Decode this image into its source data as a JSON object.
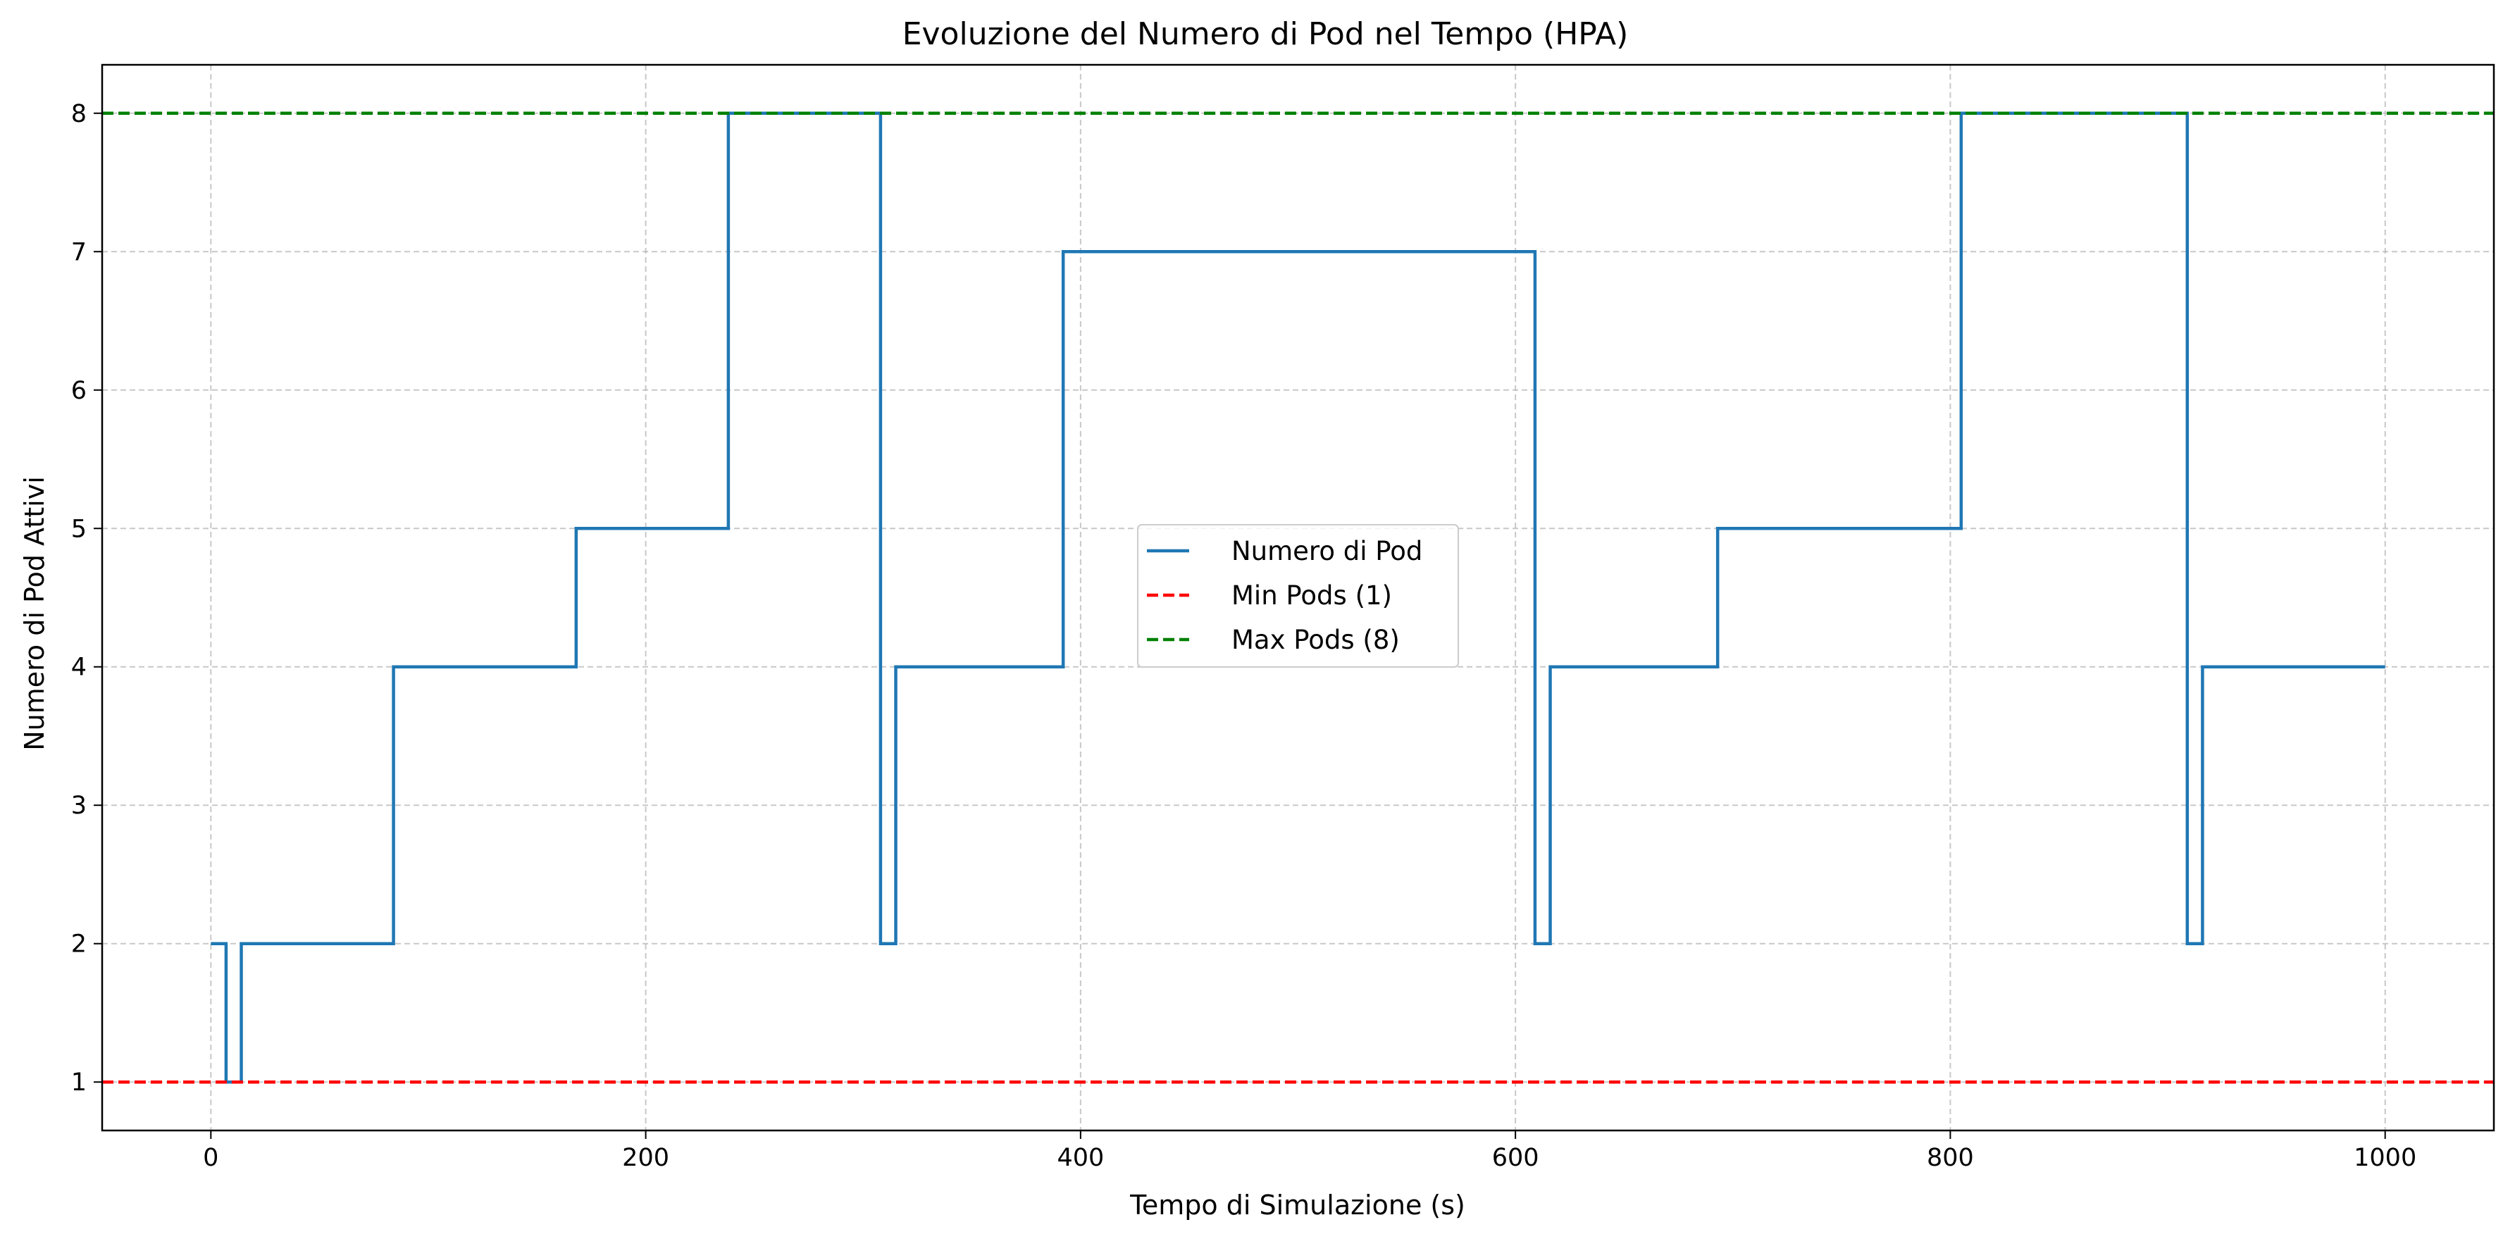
{
  "chart_data": {
    "type": "line",
    "title": "Evoluzione del Numero di Pod nel Tempo (HPA)",
    "xlabel": "Tempo di Simulazione (s)",
    "ylabel": "Numero di Pod Attivi",
    "xlim": [
      -50,
      1050
    ],
    "ylim": [
      0.65,
      8.35
    ],
    "xticks": [
      0,
      200,
      400,
      600,
      800,
      1000
    ],
    "xtick_labels": [
      "0",
      "200",
      "400",
      "600",
      "800",
      "1000"
    ],
    "yticks": [
      1,
      2,
      3,
      4,
      5,
      6,
      7,
      8
    ],
    "ytick_labels": [
      "1",
      "2",
      "3",
      "4",
      "5",
      "6",
      "7",
      "8"
    ],
    "grid": true,
    "legend_position": "center",
    "series": [
      {
        "name": "Numero di Pod",
        "style": "step",
        "color": "#1f77b4",
        "x": [
          0,
          7,
          14,
          84,
          168,
          238,
          308,
          315,
          392,
          609,
          616,
          693,
          805,
          909,
          916,
          1000
        ],
        "y": [
          2,
          1,
          2,
          4,
          5,
          8,
          2,
          4,
          7,
          2,
          4,
          5,
          8,
          2,
          4,
          4
        ]
      },
      {
        "name": "Min Pods (1)",
        "style": "hline",
        "dash": "dashed",
        "color": "#ff0000",
        "y": 1
      },
      {
        "name": "Max Pods (8)",
        "style": "hline",
        "dash": "dashed",
        "color": "#008000",
        "y": 8
      }
    ]
  }
}
